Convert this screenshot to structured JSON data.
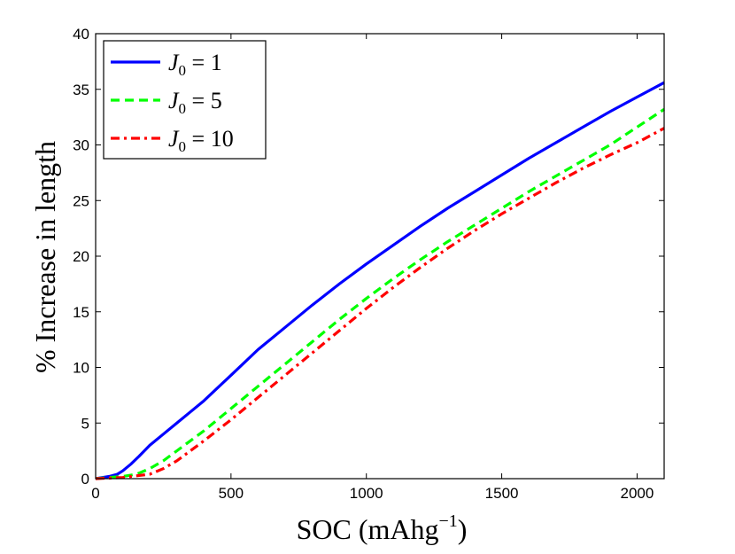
{
  "chart_data": {
    "type": "line",
    "title": "",
    "xlabel_base": "SOC (mAhg",
    "xlabel_exp": "−1",
    "xlabel_close": ")",
    "ylabel": "% Increase in length",
    "xlim": [
      0,
      2100
    ],
    "ylim": [
      0,
      40
    ],
    "xticks": [
      0,
      500,
      1000,
      1500,
      2000
    ],
    "yticks": [
      0,
      5,
      10,
      15,
      20,
      25,
      30,
      35,
      40
    ],
    "legend_position": "top-left",
    "series": [
      {
        "name": "J0 = 1",
        "legend_var": "J",
        "legend_sub": "0",
        "legend_rest": " = 1",
        "color": "#0000ff",
        "style": "solid",
        "x": [
          0,
          50,
          80,
          100,
          130,
          160,
          200,
          250,
          300,
          350,
          400,
          500,
          600,
          700,
          800,
          900,
          1000,
          1100,
          1200,
          1300,
          1400,
          1500,
          1600,
          1700,
          1800,
          1900,
          2000,
          2100
        ],
        "y": [
          0,
          0.2,
          0.4,
          0.7,
          1.3,
          2.0,
          3.0,
          4.0,
          5.0,
          6.0,
          7.0,
          9.3,
          11.6,
          13.6,
          15.6,
          17.5,
          19.3,
          21.0,
          22.7,
          24.3,
          25.8,
          27.3,
          28.8,
          30.2,
          31.6,
          33.0,
          34.3,
          35.6
        ]
      },
      {
        "name": "J0 = 5",
        "legend_var": "J",
        "legend_sub": "0",
        "legend_rest": " = 5",
        "color": "#00ff00",
        "style": "dashed",
        "x": [
          0,
          50,
          100,
          150,
          200,
          250,
          300,
          350,
          400,
          500,
          600,
          700,
          800,
          900,
          1000,
          1100,
          1200,
          1300,
          1400,
          1500,
          1600,
          1700,
          1800,
          1900,
          2000,
          2100
        ],
        "y": [
          0,
          0.1,
          0.2,
          0.4,
          0.9,
          1.6,
          2.5,
          3.4,
          4.3,
          6.3,
          8.3,
          10.3,
          12.3,
          14.3,
          16.2,
          18.0,
          19.7,
          21.3,
          22.8,
          24.3,
          25.8,
          27.2,
          28.6,
          30.0,
          31.6,
          33.2
        ]
      },
      {
        "name": "J0 = 10",
        "legend_var": "J",
        "legend_sub": "0",
        "legend_rest": " = 10",
        "color": "#ff0000",
        "style": "dashdot",
        "x": [
          0,
          100,
          200,
          250,
          300,
          350,
          400,
          500,
          600,
          700,
          800,
          900,
          1000,
          1100,
          1200,
          1300,
          1400,
          1500,
          1600,
          1700,
          1800,
          1900,
          2000,
          2100
        ],
        "y": [
          0,
          0.1,
          0.4,
          0.9,
          1.6,
          2.5,
          3.4,
          5.3,
          7.3,
          9.3,
          11.3,
          13.3,
          15.3,
          17.2,
          19.0,
          20.7,
          22.3,
          23.8,
          25.2,
          26.6,
          27.9,
          29.1,
          30.2,
          31.5
        ]
      }
    ]
  }
}
